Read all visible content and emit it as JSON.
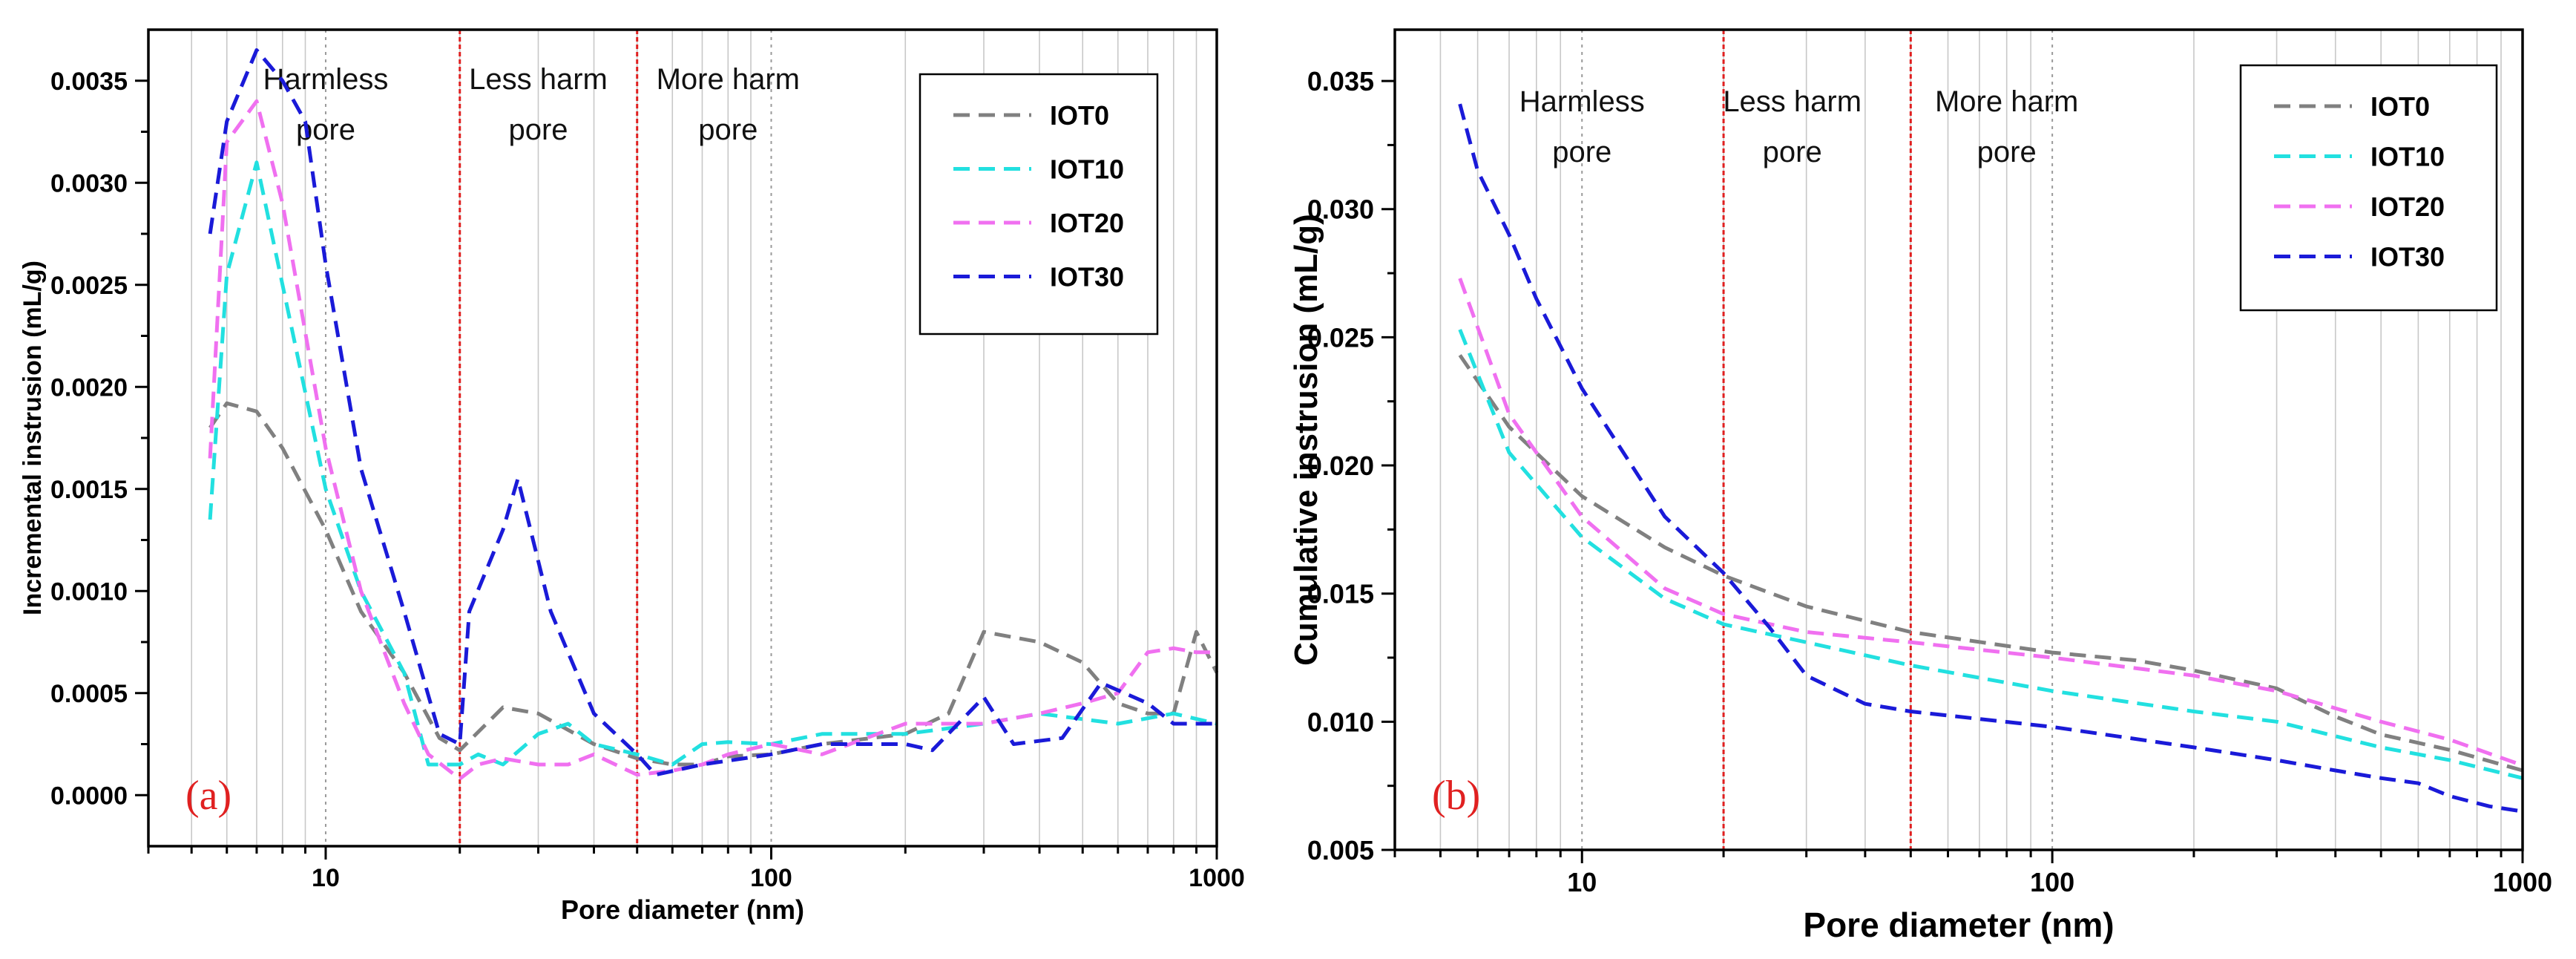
{
  "chart_data": [
    {
      "type": "line",
      "panel_tag": "(a)",
      "xlabel": "Pore diameter (nm)",
      "ylabel": "Incremental instrusion (mL/g)",
      "xscale": "log",
      "xlim": [
        4,
        1000
      ],
      "ylim": [
        -0.00025,
        0.00375
      ],
      "xticks": [
        10,
        100,
        1000
      ],
      "xtick_labels": [
        "10",
        "100",
        "1000"
      ],
      "yticks": [
        0.0,
        0.0005,
        0.001,
        0.0015,
        0.002,
        0.0025,
        0.003,
        0.0035
      ],
      "ytick_labels": [
        "0.0000",
        "0.0005",
        "0.0010",
        "0.0015",
        "0.0020",
        "0.0025",
        "0.0030",
        "0.0035"
      ],
      "region_boundaries": [
        20,
        50
      ],
      "regions": [
        {
          "line1": "Harmless",
          "line2": "pore",
          "x": 10
        },
        {
          "line1": "Less harm",
          "line2": "pore",
          "x": 30
        },
        {
          "line1": "More harm",
          "line2": "pore",
          "x": 80
        }
      ],
      "legend_position": "top-right",
      "series": [
        {
          "name": "IOT0",
          "color": "#808080",
          "x": [
            5.5,
            6,
            7,
            8,
            10,
            12,
            15,
            18,
            20,
            25,
            30,
            40,
            50,
            60,
            70,
            80,
            100,
            130,
            200,
            250,
            300,
            400,
            500,
            600,
            700,
            800,
            900,
            1000
          ],
          "y": [
            0.0018,
            0.00192,
            0.00188,
            0.0017,
            0.0013,
            0.0009,
            0.0006,
            0.00028,
            0.00022,
            0.00043,
            0.0004,
            0.00025,
            0.00018,
            0.00015,
            0.00015,
            0.00019,
            0.0002,
            0.00025,
            0.0003,
            0.0004,
            0.0008,
            0.00075,
            0.00065,
            0.00045,
            0.0004,
            0.0004,
            0.0008,
            0.0006
          ]
        },
        {
          "name": "IOT10",
          "color": "#22e0e0",
          "x": [
            5.5,
            6,
            7,
            8,
            10,
            12,
            15,
            17,
            20,
            22,
            25,
            30,
            35,
            40,
            50,
            60,
            70,
            80,
            100,
            130,
            200,
            300,
            400,
            600,
            800,
            1000
          ],
          "y": [
            0.00135,
            0.00255,
            0.0031,
            0.0025,
            0.0015,
            0.001,
            0.0006,
            0.00015,
            0.00015,
            0.0002,
            0.00015,
            0.0003,
            0.00035,
            0.00025,
            0.0002,
            0.00015,
            0.00025,
            0.00026,
            0.00025,
            0.0003,
            0.0003,
            0.00035,
            0.0004,
            0.00035,
            0.0004,
            0.00035
          ]
        },
        {
          "name": "IOT20",
          "color": "#f070f0",
          "x": [
            5.5,
            6,
            7,
            8,
            10,
            12,
            15,
            17,
            20,
            22,
            25,
            30,
            35,
            40,
            50,
            60,
            70,
            80,
            100,
            130,
            200,
            300,
            400,
            500,
            600,
            700,
            800,
            900,
            1000
          ],
          "y": [
            0.00165,
            0.0032,
            0.0034,
            0.0029,
            0.0017,
            0.001,
            0.00045,
            0.0002,
            8e-05,
            0.00015,
            0.00018,
            0.00015,
            0.00015,
            0.0002,
            0.0001,
            0.00012,
            0.00015,
            0.0002,
            0.00025,
            0.0002,
            0.00035,
            0.00035,
            0.0004,
            0.00045,
            0.0005,
            0.0007,
            0.00072,
            0.0007,
            0.0007
          ]
        },
        {
          "name": "IOT30",
          "color": "#1a1ad8",
          "x": [
            5.5,
            6,
            7,
            8,
            9,
            10,
            12,
            15,
            18,
            20,
            21,
            25,
            27,
            32,
            40,
            50,
            55,
            70,
            100,
            130,
            200,
            230,
            300,
            350,
            450,
            550,
            700,
            800,
            1000
          ],
          "y": [
            0.00275,
            0.0033,
            0.00365,
            0.0035,
            0.0033,
            0.0026,
            0.0016,
            0.0009,
            0.0003,
            0.00025,
            0.0009,
            0.0013,
            0.00155,
            0.0009,
            0.0004,
            0.0002,
            0.0001,
            0.00015,
            0.0002,
            0.00025,
            0.00025,
            0.00022,
            0.00048,
            0.00025,
            0.00028,
            0.00055,
            0.00045,
            0.00035,
            0.00035
          ]
        }
      ]
    },
    {
      "type": "line",
      "panel_tag": "(b)",
      "xlabel": "Pore diameter (nm)",
      "ylabel": "Cumulative instrusion (mL/g)",
      "xscale": "log",
      "xlim": [
        4,
        1000
      ],
      "ylim": [
        0.005,
        0.037
      ],
      "xticks": [
        10,
        100,
        1000
      ],
      "xtick_labels": [
        "10",
        "100",
        "1000"
      ],
      "yticks": [
        0.005,
        0.01,
        0.015,
        0.02,
        0.025,
        0.03,
        0.035
      ],
      "ytick_labels": [
        "0.005",
        "0.010",
        "0.015",
        "0.020",
        "0.025",
        "0.030",
        "0.035"
      ],
      "region_boundaries": [
        20,
        50
      ],
      "regions": [
        {
          "line1": "Harmless",
          "line2": "pore",
          "x": 10
        },
        {
          "line1": "Less harm",
          "line2": "pore",
          "x": 28
        },
        {
          "line1": "More harm",
          "line2": "pore",
          "x": 80
        }
      ],
      "legend_position": "top-right",
      "series": [
        {
          "name": "IOT0",
          "color": "#808080",
          "x": [
            5.5,
            7,
            10,
            15,
            20,
            30,
            50,
            100,
            150,
            200,
            300,
            400,
            500,
            700,
            1000
          ],
          "y": [
            0.0243,
            0.0215,
            0.0188,
            0.0168,
            0.0157,
            0.0145,
            0.0135,
            0.0127,
            0.0124,
            0.012,
            0.0113,
            0.0102,
            0.0095,
            0.0089,
            0.0081
          ]
        },
        {
          "name": "IOT10",
          "color": "#22e0e0",
          "x": [
            5.5,
            7,
            10,
            15,
            20,
            30,
            50,
            100,
            200,
            300,
            500,
            700,
            1000
          ],
          "y": [
            0.0253,
            0.0205,
            0.0172,
            0.0148,
            0.0138,
            0.0131,
            0.0122,
            0.0112,
            0.0104,
            0.01,
            0.009,
            0.0085,
            0.0078
          ]
        },
        {
          "name": "IOT20",
          "color": "#f070f0",
          "x": [
            5.5,
            7,
            10,
            15,
            20,
            30,
            50,
            100,
            200,
            300,
            500,
            700,
            1000
          ],
          "y": [
            0.0273,
            0.022,
            0.018,
            0.0152,
            0.0142,
            0.0135,
            0.0131,
            0.0125,
            0.0118,
            0.0112,
            0.01,
            0.0093,
            0.0083
          ]
        },
        {
          "name": "IOT30",
          "color": "#1a1ad8",
          "x": [
            5.5,
            6,
            7,
            8,
            10,
            15,
            20,
            25,
            30,
            40,
            50,
            100,
            200,
            300,
            400,
            500,
            600,
            700,
            850,
            1000
          ],
          "y": [
            0.0341,
            0.0315,
            0.029,
            0.0265,
            0.023,
            0.018,
            0.0158,
            0.0137,
            0.0118,
            0.0107,
            0.0104,
            0.0098,
            0.009,
            0.0085,
            0.0081,
            0.0078,
            0.0076,
            0.0071,
            0.0067,
            0.0065
          ]
        }
      ]
    }
  ]
}
